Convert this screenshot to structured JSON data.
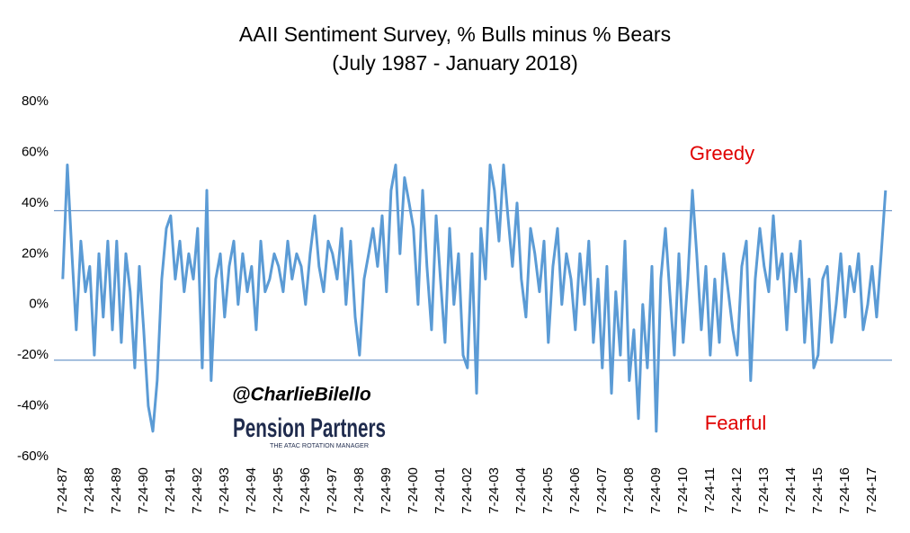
{
  "chart_data": {
    "type": "line",
    "title": "AAII Sentiment Survey, % Bulls minus % Bears",
    "subtitle": "(July 1987 - January 2018)",
    "annotations": [
      "Greedy",
      "Fearful"
    ],
    "watermark": {
      "handle": "@CharlieBilello",
      "brand": "Pension Partners",
      "tagline": "THE ATAC ROTATION MANAGER"
    },
    "reference_lines": [
      37,
      -22
    ],
    "reference_color": "#4f81bd",
    "xlim": [
      1987.5,
      2018.3
    ],
    "ylim": [
      -60,
      80
    ],
    "yticks": [
      {
        "value": -60,
        "label": "-60%"
      },
      {
        "value": -40,
        "label": "-40%"
      },
      {
        "value": -20,
        "label": "-20%"
      },
      {
        "value": 0,
        "label": "0%"
      },
      {
        "value": 20,
        "label": "20%"
      },
      {
        "value": 40,
        "label": "40%"
      },
      {
        "value": 60,
        "label": "60%"
      },
      {
        "value": 80,
        "label": "80%"
      }
    ],
    "xticks": [
      {
        "value": 1987.56,
        "label": "7-24-87"
      },
      {
        "value": 1988.56,
        "label": "7-24-88"
      },
      {
        "value": 1989.56,
        "label": "7-24-89"
      },
      {
        "value": 1990.56,
        "label": "7-24-90"
      },
      {
        "value": 1991.56,
        "label": "7-24-91"
      },
      {
        "value": 1992.56,
        "label": "7-24-92"
      },
      {
        "value": 1993.56,
        "label": "7-24-93"
      },
      {
        "value": 1994.56,
        "label": "7-24-94"
      },
      {
        "value": 1995.56,
        "label": "7-24-95"
      },
      {
        "value": 1996.56,
        "label": "7-24-96"
      },
      {
        "value": 1997.56,
        "label": "7-24-97"
      },
      {
        "value": 1998.56,
        "label": "7-24-98"
      },
      {
        "value": 1999.56,
        "label": "7-24-99"
      },
      {
        "value": 2000.56,
        "label": "7-24-00"
      },
      {
        "value": 2001.56,
        "label": "7-24-01"
      },
      {
        "value": 2002.56,
        "label": "7-24-02"
      },
      {
        "value": 2003.56,
        "label": "7-24-03"
      },
      {
        "value": 2004.56,
        "label": "7-24-04"
      },
      {
        "value": 2005.56,
        "label": "7-24-05"
      },
      {
        "value": 2006.56,
        "label": "7-24-06"
      },
      {
        "value": 2007.56,
        "label": "7-24-07"
      },
      {
        "value": 2008.56,
        "label": "7-24-08"
      },
      {
        "value": 2009.56,
        "label": "7-24-09"
      },
      {
        "value": 2010.56,
        "label": "7-24-10"
      },
      {
        "value": 2011.56,
        "label": "7-24-11"
      },
      {
        "value": 2012.56,
        "label": "7-24-12"
      },
      {
        "value": 2013.56,
        "label": "7-24-13"
      },
      {
        "value": 2014.56,
        "label": "7-24-14"
      },
      {
        "value": 2015.56,
        "label": "7-24-15"
      },
      {
        "value": 2016.56,
        "label": "7-24-16"
      },
      {
        "value": 2017.56,
        "label": "7-24-17"
      }
    ],
    "series": [
      {
        "name": "Bulls minus Bears",
        "color": "#5b9bd5",
        "x": [
          1987.56,
          1987.73,
          1987.9,
          1988.06,
          1988.23,
          1988.4,
          1988.56,
          1988.73,
          1988.9,
          1989.06,
          1989.23,
          1989.4,
          1989.56,
          1989.73,
          1989.9,
          1990.06,
          1990.23,
          1990.4,
          1990.56,
          1990.73,
          1990.9,
          1991.06,
          1991.23,
          1991.4,
          1991.56,
          1991.73,
          1991.9,
          1992.06,
          1992.23,
          1992.4,
          1992.56,
          1992.73,
          1992.9,
          1993.06,
          1993.23,
          1993.4,
          1993.56,
          1993.73,
          1993.9,
          1994.06,
          1994.23,
          1994.4,
          1994.56,
          1994.73,
          1994.9,
          1995.06,
          1995.23,
          1995.4,
          1995.56,
          1995.73,
          1995.9,
          1996.06,
          1996.23,
          1996.4,
          1996.56,
          1996.73,
          1996.9,
          1997.06,
          1997.23,
          1997.4,
          1997.56,
          1997.73,
          1997.9,
          1998.06,
          1998.23,
          1998.4,
          1998.56,
          1998.73,
          1998.9,
          1999.06,
          1999.23,
          1999.4,
          1999.56,
          1999.73,
          1999.9,
          2000.06,
          2000.23,
          2000.4,
          2000.56,
          2000.73,
          2000.9,
          2001.06,
          2001.23,
          2001.4,
          2001.56,
          2001.73,
          2001.9,
          2002.06,
          2002.23,
          2002.4,
          2002.56,
          2002.73,
          2002.9,
          2003.06,
          2003.23,
          2003.4,
          2003.56,
          2003.73,
          2003.9,
          2004.06,
          2004.23,
          2004.4,
          2004.56,
          2004.73,
          2004.9,
          2005.06,
          2005.23,
          2005.4,
          2005.56,
          2005.73,
          2005.9,
          2006.06,
          2006.23,
          2006.4,
          2006.56,
          2006.73,
          2006.9,
          2007.06,
          2007.23,
          2007.4,
          2007.56,
          2007.73,
          2007.9,
          2008.06,
          2008.23,
          2008.4,
          2008.56,
          2008.73,
          2008.9,
          2009.06,
          2009.23,
          2009.4,
          2009.56,
          2009.73,
          2009.9,
          2010.06,
          2010.23,
          2010.4,
          2010.56,
          2010.73,
          2010.9,
          2011.06,
          2011.23,
          2011.4,
          2011.56,
          2011.73,
          2011.9,
          2012.06,
          2012.23,
          2012.4,
          2012.56,
          2012.73,
          2012.9,
          2013.06,
          2013.23,
          2013.4,
          2013.56,
          2013.73,
          2013.9,
          2014.06,
          2014.23,
          2014.4,
          2014.56,
          2014.73,
          2014.9,
          2015.06,
          2015.23,
          2015.4,
          2015.56,
          2015.73,
          2015.9,
          2016.06,
          2016.23,
          2016.4,
          2016.56,
          2016.73,
          2016.9,
          2017.06,
          2017.23,
          2017.4,
          2017.56,
          2017.73,
          2017.9,
          2018.06
        ],
        "values": [
          10,
          55,
          20,
          -10,
          25,
          5,
          15,
          -20,
          20,
          -5,
          25,
          -10,
          25,
          -15,
          20,
          5,
          -25,
          15,
          -10,
          -40,
          -50,
          -30,
          10,
          30,
          35,
          10,
          25,
          5,
          20,
          10,
          30,
          -25,
          45,
          -30,
          10,
          20,
          -5,
          15,
          25,
          0,
          20,
          5,
          15,
          -10,
          25,
          5,
          10,
          20,
          15,
          5,
          25,
          10,
          20,
          15,
          0,
          20,
          35,
          15,
          5,
          25,
          20,
          10,
          30,
          0,
          25,
          -5,
          -20,
          10,
          20,
          30,
          15,
          35,
          5,
          45,
          55,
          20,
          50,
          40,
          30,
          0,
          45,
          15,
          -10,
          35,
          10,
          -15,
          30,
          0,
          20,
          -20,
          -25,
          20,
          -35,
          30,
          10,
          55,
          45,
          25,
          55,
          35,
          15,
          40,
          10,
          -5,
          30,
          20,
          5,
          25,
          -15,
          15,
          30,
          0,
          20,
          10,
          -10,
          20,
          0,
          25,
          -15,
          10,
          -25,
          15,
          -35,
          5,
          -20,
          25,
          -30,
          -10,
          -45,
          0,
          -25,
          15,
          -50,
          10,
          30,
          5,
          -20,
          20,
          -15,
          10,
          45,
          20,
          -10,
          15,
          -20,
          10,
          -15,
          20,
          5,
          -10,
          -20,
          15,
          25,
          -30,
          10,
          30,
          15,
          5,
          35,
          10,
          20,
          -10,
          20,
          5,
          25,
          -15,
          10,
          -25,
          -20,
          10,
          15,
          -15,
          0,
          20,
          -5,
          15,
          5,
          20,
          -10,
          0,
          15,
          -5,
          20,
          45
        ]
      }
    ]
  }
}
